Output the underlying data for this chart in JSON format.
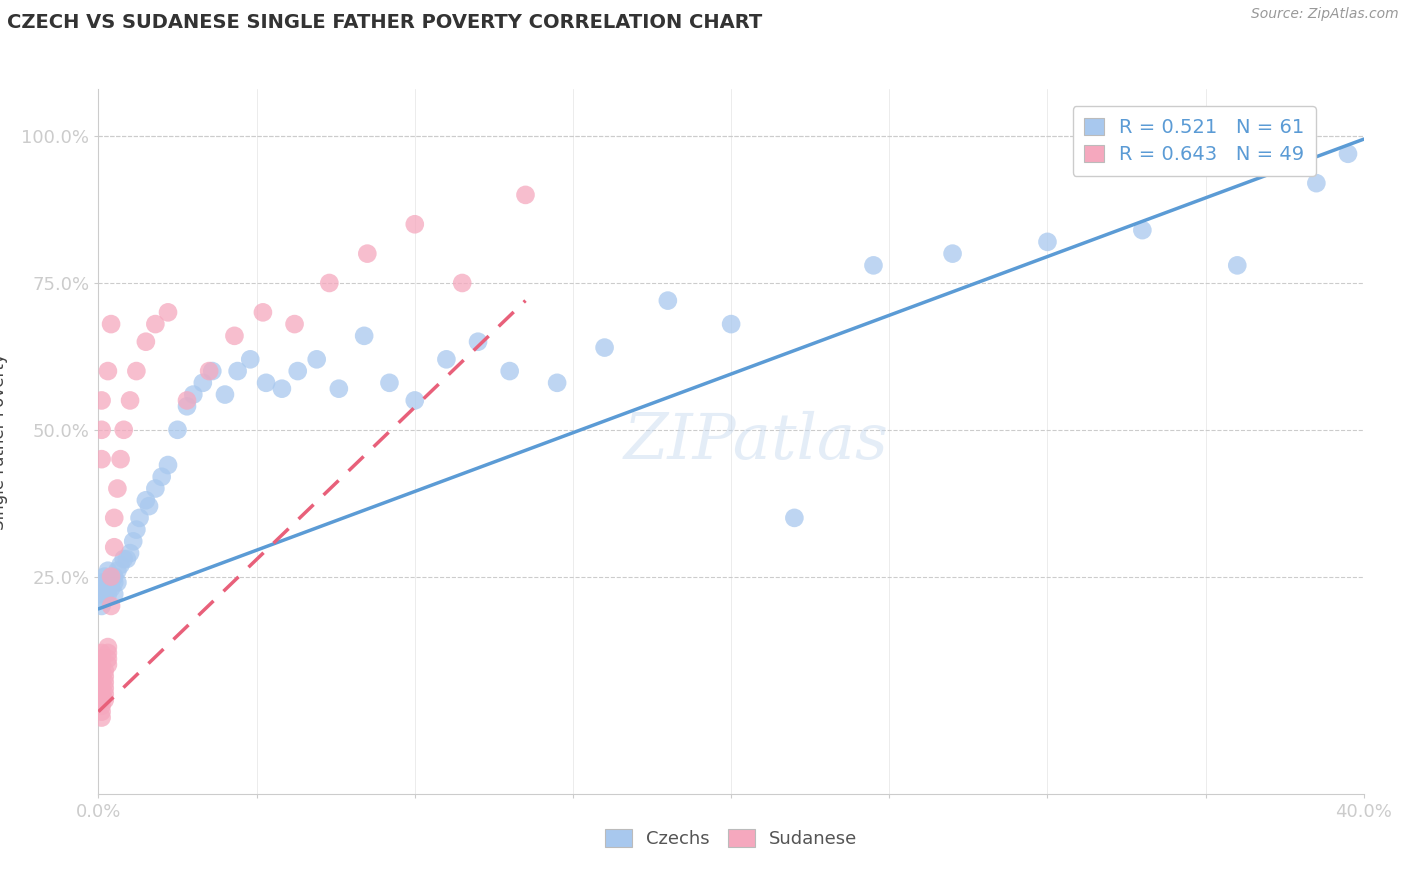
{
  "title": "CZECH VS SUDANESE SINGLE FATHER POVERTY CORRELATION CHART",
  "source": "Source: ZipAtlas.com",
  "ylabel": "Single Father Poverty",
  "legend_labels": [
    "Czechs",
    "Sudanese"
  ],
  "legend_r_blue": "0.521",
  "legend_n_blue": "61",
  "legend_r_pink": "0.643",
  "legend_n_pink": "49",
  "blue_color": "#A8C8EE",
  "pink_color": "#F5A8BE",
  "blue_line_color": "#5B9BD5",
  "pink_line_color": "#E8607A",
  "grid_color": "#CCCCCC",
  "text_color": "#444444",
  "axis_label_color": "#5B9BD5",
  "background_color": "#FFFFFF",
  "xmin": 0.0,
  "xmax": 0.4,
  "ymin": -0.12,
  "ymax": 1.08,
  "czechs_x": [
    0.001,
    0.001,
    0.001,
    0.001,
    0.002,
    0.002,
    0.002,
    0.002,
    0.003,
    0.003,
    0.003,
    0.004,
    0.004,
    0.005,
    0.005,
    0.005,
    0.006,
    0.006,
    0.007,
    0.008,
    0.009,
    0.01,
    0.011,
    0.012,
    0.013,
    0.015,
    0.016,
    0.018,
    0.02,
    0.022,
    0.025,
    0.028,
    0.03,
    0.033,
    0.036,
    0.04,
    0.044,
    0.048,
    0.053,
    0.058,
    0.063,
    0.069,
    0.076,
    0.084,
    0.092,
    0.1,
    0.11,
    0.12,
    0.13,
    0.145,
    0.16,
    0.18,
    0.2,
    0.22,
    0.245,
    0.27,
    0.3,
    0.33,
    0.36,
    0.385,
    0.395
  ],
  "czechs_y": [
    0.22,
    0.24,
    0.2,
    0.21,
    0.23,
    0.22,
    0.25,
    0.24,
    0.23,
    0.22,
    0.26,
    0.24,
    0.23,
    0.24,
    0.22,
    0.25,
    0.26,
    0.24,
    0.27,
    0.28,
    0.28,
    0.29,
    0.31,
    0.33,
    0.35,
    0.38,
    0.37,
    0.4,
    0.42,
    0.44,
    0.5,
    0.54,
    0.56,
    0.58,
    0.6,
    0.56,
    0.6,
    0.62,
    0.58,
    0.57,
    0.6,
    0.62,
    0.57,
    0.66,
    0.58,
    0.55,
    0.62,
    0.65,
    0.6,
    0.58,
    0.64,
    0.72,
    0.68,
    0.35,
    0.78,
    0.8,
    0.82,
    0.84,
    0.78,
    0.92,
    0.97
  ],
  "sudanese_x": [
    0.001,
    0.001,
    0.001,
    0.001,
    0.001,
    0.001,
    0.001,
    0.001,
    0.001,
    0.001,
    0.001,
    0.001,
    0.002,
    0.002,
    0.002,
    0.002,
    0.002,
    0.002,
    0.003,
    0.003,
    0.003,
    0.003,
    0.004,
    0.004,
    0.005,
    0.005,
    0.006,
    0.007,
    0.008,
    0.01,
    0.012,
    0.015,
    0.018,
    0.022,
    0.028,
    0.035,
    0.043,
    0.052,
    0.062,
    0.073,
    0.085,
    0.1,
    0.115,
    0.135,
    0.003,
    0.004,
    0.001,
    0.001,
    0.001
  ],
  "sudanese_y": [
    0.04,
    0.05,
    0.06,
    0.07,
    0.08,
    0.09,
    0.1,
    0.11,
    0.12,
    0.03,
    0.02,
    0.01,
    0.04,
    0.05,
    0.06,
    0.07,
    0.08,
    0.09,
    0.1,
    0.11,
    0.12,
    0.13,
    0.2,
    0.25,
    0.3,
    0.35,
    0.4,
    0.45,
    0.5,
    0.55,
    0.6,
    0.65,
    0.68,
    0.7,
    0.55,
    0.6,
    0.66,
    0.7,
    0.68,
    0.75,
    0.8,
    0.85,
    0.75,
    0.9,
    0.6,
    0.68,
    0.5,
    0.45,
    0.55
  ],
  "blue_trend_x0": 0.0,
  "blue_trend_x1": 0.4,
  "blue_trend_y0": 0.195,
  "blue_trend_y1": 0.995,
  "pink_trend_x0": 0.0,
  "pink_trend_x1": 0.135,
  "pink_trend_y0": 0.02,
  "pink_trend_y1": 0.72
}
